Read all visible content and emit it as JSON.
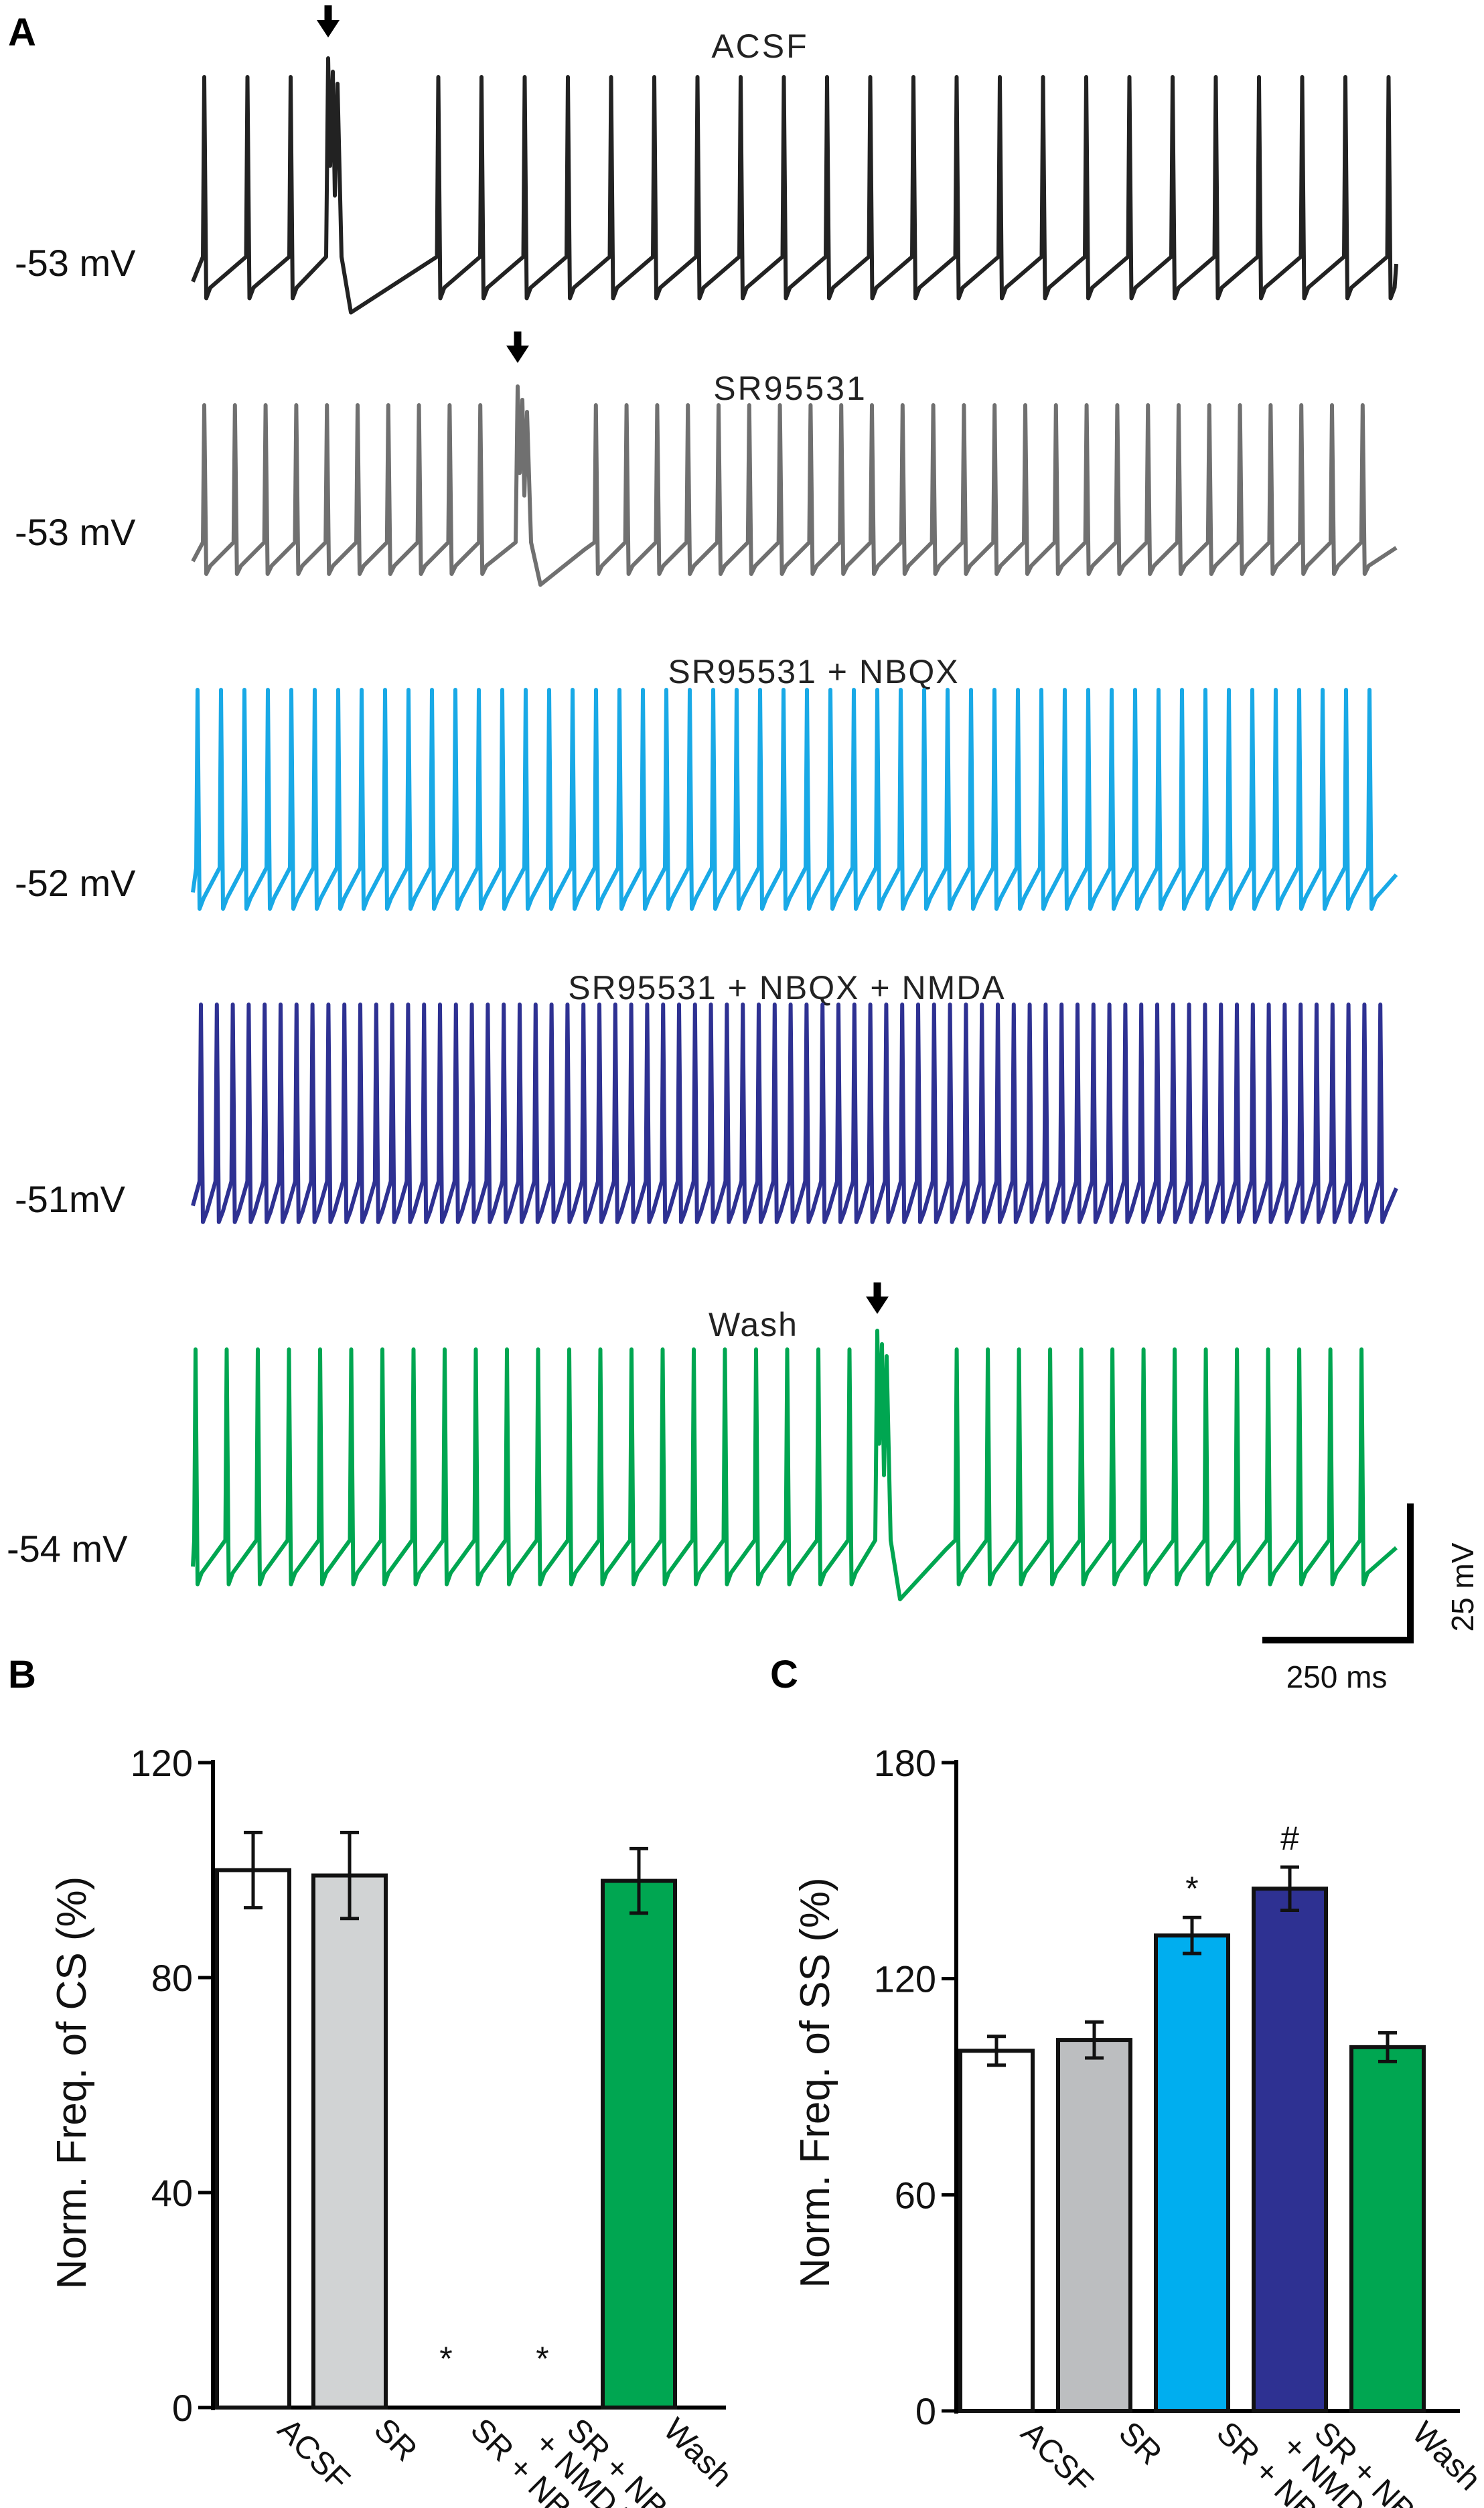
{
  "panels": {
    "a": "A",
    "b": "B",
    "c": "C"
  },
  "traces": [
    {
      "label": "ACSF",
      "baseline": "-53 mV",
      "color": "#222222",
      "complex_spike": true
    },
    {
      "label": "SR95531",
      "baseline": "-53 mV",
      "color": "#707070",
      "complex_spike": true
    },
    {
      "label": "SR95531 + NBQX",
      "baseline": "-52 mV",
      "color": "#19a9e6",
      "complex_spike": false
    },
    {
      "label": "SR95531 + NBQX + NMDA",
      "baseline": "-51mV",
      "color": "#2e3192",
      "complex_spike": false
    },
    {
      "label": "Wash",
      "baseline": "-54 mV",
      "color": "#00a651",
      "complex_spike": true
    }
  ],
  "scale_bar": {
    "voltage": "25 mV",
    "time": "250 ms"
  },
  "chart_data": [
    {
      "type": "bar",
      "panel": "B",
      "categories": [
        "ACSF",
        "SR",
        "SR + NBQX",
        "SR + NBQX + NMDA",
        "Wash"
      ],
      "tick_labels": [
        [
          "ACSF"
        ],
        [
          "SR"
        ],
        [
          "SR + NBQX"
        ],
        [
          "SR + NBQX",
          "+ NMDA"
        ],
        [
          "Wash"
        ]
      ],
      "values": [
        100,
        99,
        0,
        0,
        98
      ],
      "errors": [
        7,
        8,
        0,
        0,
        6
      ],
      "colors": [
        "#ffffff",
        "#d1d3d4",
        "#ffffff",
        "#ffffff",
        "#00a651"
      ],
      "annotations": [
        "",
        "",
        "*",
        "*",
        ""
      ],
      "ylabel": "Norm. Freq. of CS (%)",
      "ylim": [
        0,
        120
      ],
      "yticks": [
        0,
        40,
        80,
        120
      ]
    },
    {
      "type": "bar",
      "panel": "C",
      "categories": [
        "ACSF",
        "SR",
        "SR + NBQX",
        "SR + NBQX + NMDA",
        "Wash"
      ],
      "tick_labels": [
        [
          "ACSF"
        ],
        [
          "SR"
        ],
        [
          "SR + NBQX"
        ],
        [
          "SR + NBQX",
          "+ NMDA"
        ],
        [
          "Wash"
        ]
      ],
      "values": [
        100,
        103,
        132,
        145,
        101
      ],
      "errors": [
        4,
        5,
        5,
        6,
        4
      ],
      "colors": [
        "#ffffff",
        "#bcbec0",
        "#00aeef",
        "#2e3192",
        "#00a651"
      ],
      "annotations": [
        "",
        "",
        "*",
        "#",
        ""
      ],
      "ylabel": "Norm. Freq. of SS (%)",
      "ylim": [
        0,
        180
      ],
      "yticks": [
        0,
        60,
        120,
        180
      ]
    }
  ]
}
